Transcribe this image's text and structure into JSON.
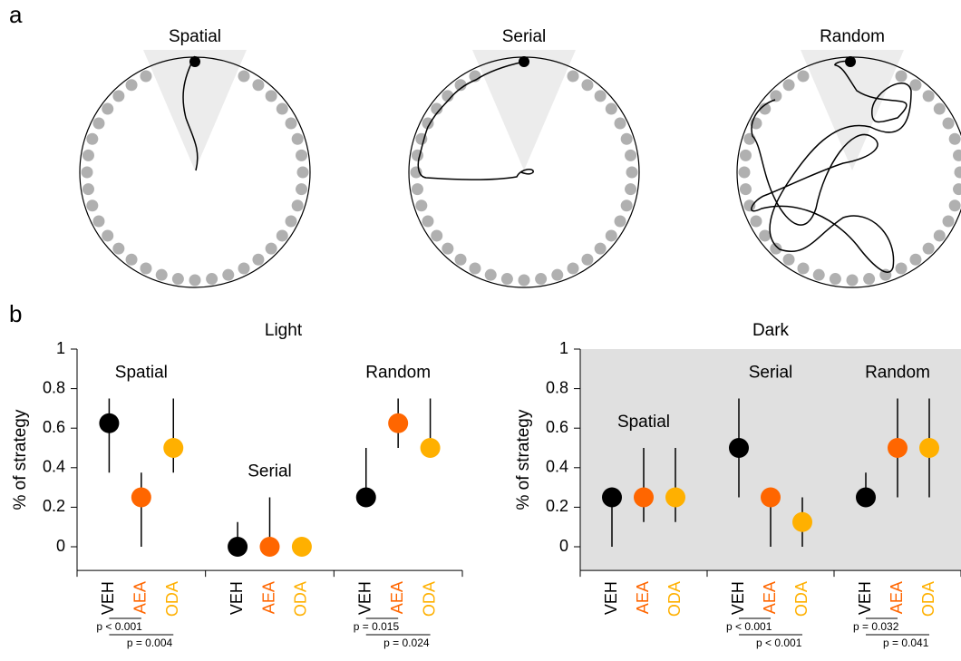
{
  "panel_labels": [
    "a",
    "b"
  ],
  "maze_titles": [
    "Spatial",
    "Serial",
    "Random"
  ],
  "chart_data": [
    {
      "type": "dot",
      "title": "Light",
      "ylabel": "% of strategy",
      "background": "#ffffff",
      "groups": [
        "Spatial",
        "Serial",
        "Random"
      ],
      "ylim": [
        -0.12,
        1
      ],
      "yticks": [
        0,
        0.2,
        0.4,
        0.6,
        0.8,
        1
      ],
      "series": [
        {
          "name": "VEH",
          "color": "#000000",
          "values": [
            0.625,
            0,
            0.25
          ],
          "lower": [
            0.375,
            0,
            0.25
          ],
          "upper": [
            0.75,
            0.125,
            0.5
          ]
        },
        {
          "name": "AEA",
          "color": "#ff6600",
          "values": [
            0.25,
            0,
            0.625
          ],
          "lower": [
            0,
            0,
            0.5
          ],
          "upper": [
            0.375,
            0.25,
            0.75
          ]
        },
        {
          "name": "ODA",
          "color": "#ffb000",
          "values": [
            0.5,
            0,
            0.5
          ],
          "lower": [
            0.375,
            0,
            0.5
          ],
          "upper": [
            0.75,
            0,
            0.75
          ]
        }
      ],
      "pvalues": [
        [
          "p < 0.001",
          "p = 0.004"
        ],
        [],
        [
          "p = 0.015",
          "p = 0.024"
        ]
      ]
    },
    {
      "type": "dot",
      "title": "Dark",
      "ylabel": "% of strategy",
      "background": "#e0e0e0",
      "groups": [
        "Spatial",
        "Serial",
        "Random"
      ],
      "ylim": [
        -0.12,
        1
      ],
      "yticks": [
        0,
        0.2,
        0.4,
        0.6,
        0.8,
        1
      ],
      "series": [
        {
          "name": "VEH",
          "color": "#000000",
          "values": [
            0.25,
            0.5,
            0.25
          ],
          "lower": [
            0,
            0.25,
            0.25
          ],
          "upper": [
            0.25,
            0.75,
            0.375
          ]
        },
        {
          "name": "AEA",
          "color": "#ff6600",
          "values": [
            0.25,
            0.25,
            0.5
          ],
          "lower": [
            0.125,
            0,
            0.25
          ],
          "upper": [
            0.5,
            0.25,
            0.75
          ]
        },
        {
          "name": "ODA",
          "color": "#ffb000",
          "values": [
            0.25,
            0.125,
            0.5
          ],
          "lower": [
            0.125,
            0,
            0.25
          ],
          "upper": [
            0.5,
            0.25,
            0.75
          ]
        }
      ],
      "pvalues": [
        [],
        [
          "p < 0.001",
          "p < 0.001"
        ],
        [
          "p = 0.032",
          "p = 0.041"
        ]
      ]
    }
  ]
}
